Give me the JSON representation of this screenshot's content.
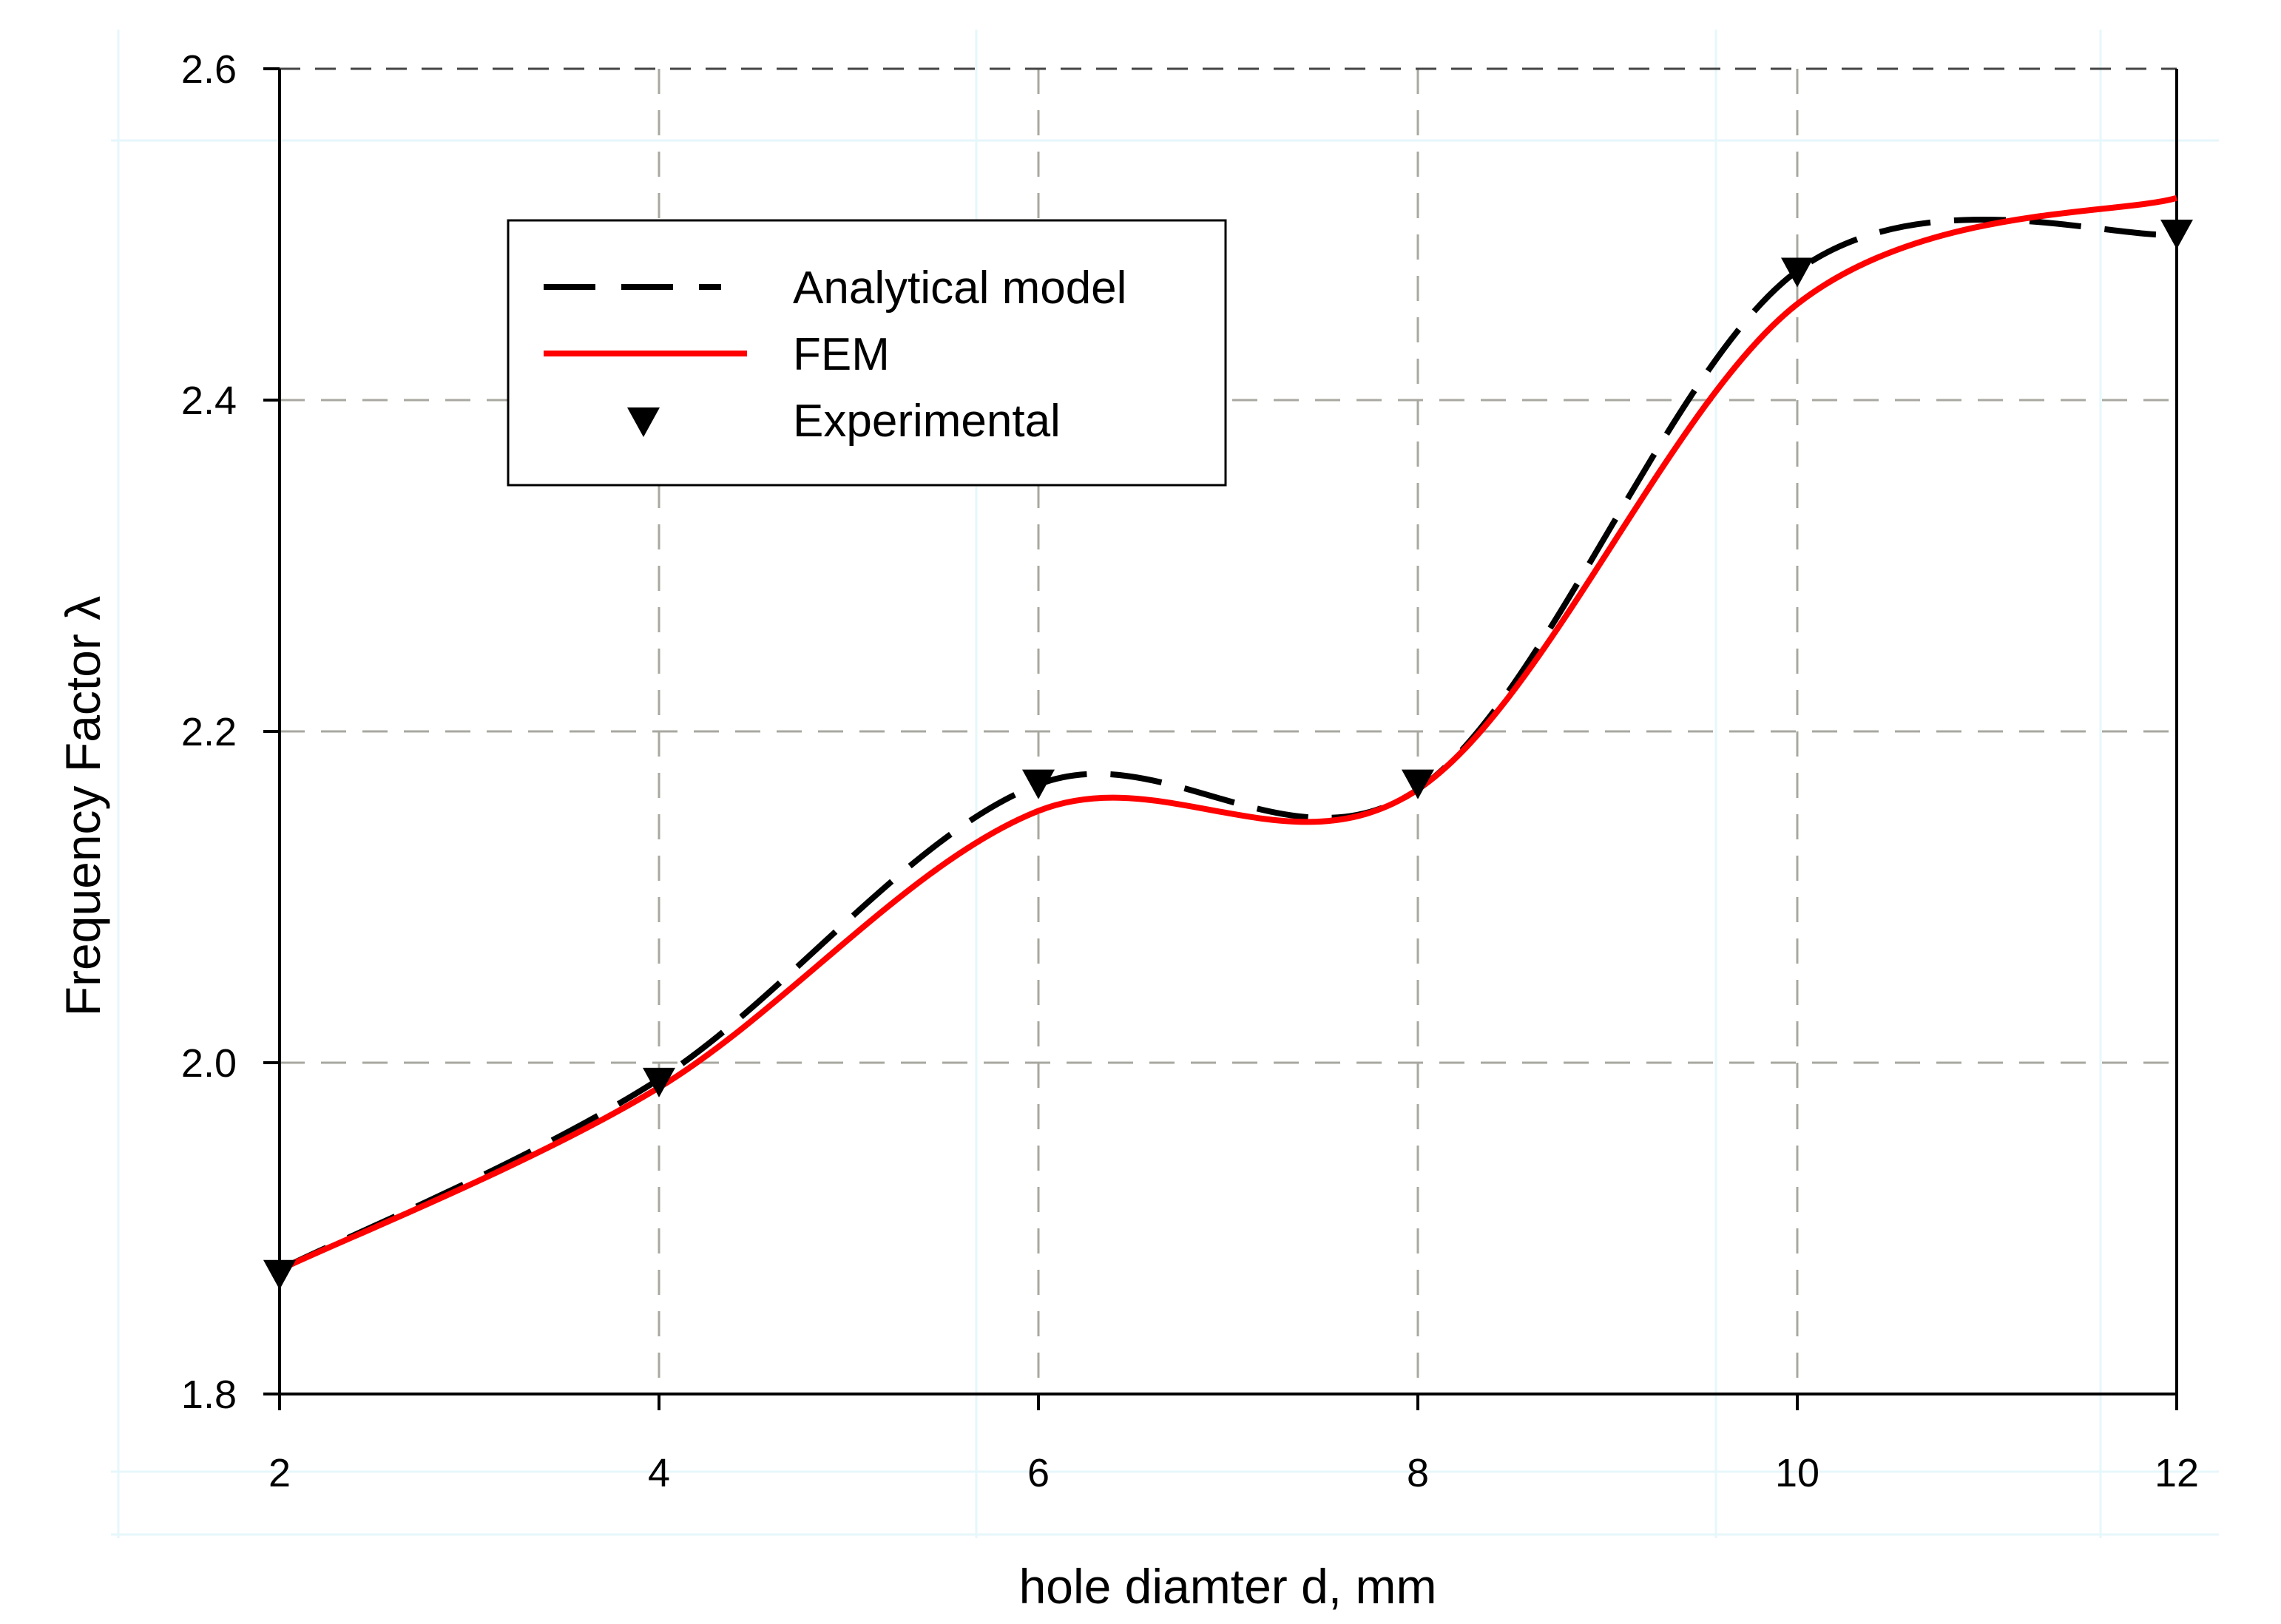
{
  "chart_data": {
    "type": "line",
    "xlabel": "hole diamter d, mm",
    "ylabel": "Frequency Factor λ",
    "xlim": [
      2,
      12
    ],
    "ylim": [
      1.8,
      2.6
    ],
    "xticks": [
      2,
      4,
      6,
      8,
      10,
      12
    ],
    "yticks": [
      1.8,
      2.0,
      2.2,
      2.4,
      2.6
    ],
    "xtick_labels": [
      "2",
      "4",
      "6",
      "8",
      "10",
      "12"
    ],
    "ytick_labels": [
      "1.8",
      "2.0",
      "2.2",
      "2.4",
      "2.6"
    ],
    "grid": true,
    "legend_position": "upper-left inside",
    "series": [
      {
        "name": "Analytical model",
        "style": "dashed",
        "color": "#000000",
        "x": [
          2,
          4,
          6,
          8,
          10,
          12
        ],
        "y": [
          1.875,
          1.99,
          2.168,
          2.165,
          2.478,
          2.5
        ]
      },
      {
        "name": "FEM",
        "style": "solid",
        "color": "#ff0000",
        "x": [
          2,
          4,
          6,
          8,
          10,
          12
        ],
        "y": [
          1.875,
          1.985,
          2.152,
          2.165,
          2.458,
          2.522
        ]
      },
      {
        "name": "Experimental",
        "style": "markers",
        "marker": "triangle-down",
        "color": "#000000",
        "x": [
          2,
          4,
          6,
          8,
          10,
          12
        ],
        "y": [
          1.872,
          1.988,
          2.168,
          2.168,
          2.477,
          2.5
        ]
      }
    ]
  }
}
